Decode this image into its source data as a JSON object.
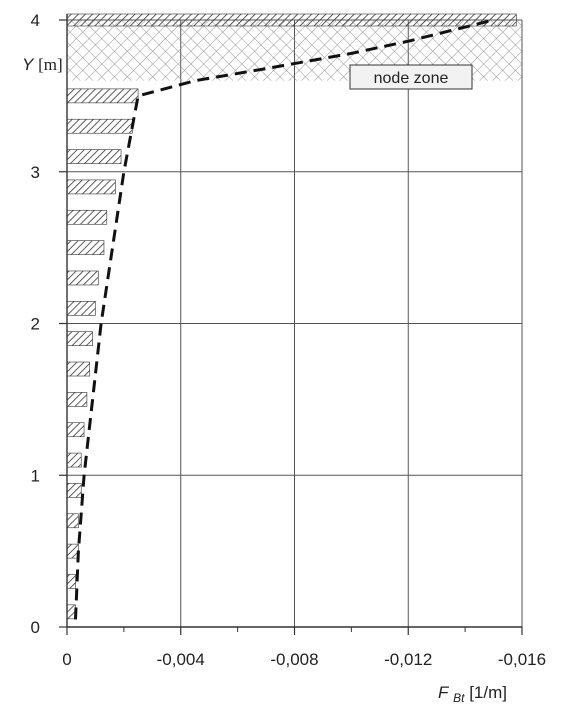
{
  "chart_data": {
    "type": "bar",
    "orientation": "horizontal",
    "xlabel": {
      "main": "F",
      "sub": "Bt",
      "unit": " [1/m]"
    },
    "ylabel": {
      "main": "Y",
      "unit": " [m]"
    },
    "xlim": [
      0,
      -0.016
    ],
    "ylim": [
      0,
      4
    ],
    "x_ticks": [
      {
        "value": 0,
        "label": "0"
      },
      {
        "value": -0.004,
        "label": "-0,004"
      },
      {
        "value": -0.008,
        "label": "-0,008"
      },
      {
        "value": -0.012,
        "label": "-0,012"
      },
      {
        "value": -0.016,
        "label": "-0,016"
      }
    ],
    "x_minor_ticks": [
      -0.002,
      -0.006,
      -0.01,
      -0.014
    ],
    "y_ticks": [
      {
        "value": 0,
        "label": "0"
      },
      {
        "value": 1,
        "label": "1"
      },
      {
        "value": 2,
        "label": "2"
      },
      {
        "value": 3,
        "label": "3"
      },
      {
        "value": 4,
        "label": "4"
      }
    ],
    "grid": true,
    "bars": [
      {
        "y": 0.1,
        "value": -0.0003
      },
      {
        "y": 0.3,
        "value": -0.0003
      },
      {
        "y": 0.5,
        "value": -0.0004
      },
      {
        "y": 0.7,
        "value": -0.0004
      },
      {
        "y": 0.9,
        "value": -0.0005
      },
      {
        "y": 1.1,
        "value": -0.0005
      },
      {
        "y": 1.3,
        "value": -0.0006
      },
      {
        "y": 1.5,
        "value": -0.0007
      },
      {
        "y": 1.7,
        "value": -0.0008
      },
      {
        "y": 1.9,
        "value": -0.0009
      },
      {
        "y": 2.1,
        "value": -0.001
      },
      {
        "y": 2.3,
        "value": -0.0011
      },
      {
        "y": 2.5,
        "value": -0.0013
      },
      {
        "y": 2.7,
        "value": -0.0014
      },
      {
        "y": 2.9,
        "value": -0.0017
      },
      {
        "y": 3.1,
        "value": -0.0019
      },
      {
        "y": 3.3,
        "value": -0.0023
      },
      {
        "y": 3.5,
        "value": -0.0025
      },
      {
        "y": 4.0,
        "value": -0.0158
      }
    ],
    "curve": {
      "style": "dashed",
      "points": [
        [
          -0.0003,
          0.05
        ],
        [
          -0.0004,
          0.5
        ],
        [
          -0.0006,
          1.0
        ],
        [
          -0.0009,
          1.5
        ],
        [
          -0.0012,
          2.0
        ],
        [
          -0.0016,
          2.5
        ],
        [
          -0.002,
          3.0
        ],
        [
          -0.0025,
          3.5
        ],
        [
          -0.0045,
          3.6
        ],
        [
          -0.007,
          3.68
        ],
        [
          -0.01,
          3.78
        ],
        [
          -0.012,
          3.86
        ],
        [
          -0.0135,
          3.93
        ],
        [
          -0.015,
          4.0
        ]
      ]
    },
    "zone": {
      "label": "node zone",
      "y_range": [
        3.6,
        4.0
      ],
      "x_range": [
        0,
        -0.016
      ]
    },
    "colors": {
      "grid": "#555555",
      "axis": "#333333",
      "hatch": "#333333",
      "curve": "#111111",
      "zone_pattern": "#888888"
    }
  }
}
